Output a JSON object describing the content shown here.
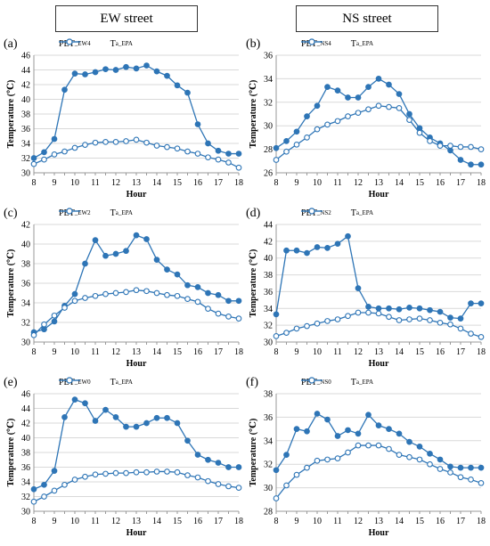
{
  "headers": {
    "left": "EW street",
    "right": "NS street"
  },
  "colors": {
    "series": "#2E75B6",
    "grid": "#d9d9d9",
    "axis": "#999999"
  },
  "chart_data": [
    {
      "type": "line",
      "label": "(a)",
      "xlabel": "Hour",
      "ylabel": "Temperature (℃)",
      "xlim": [
        8,
        18
      ],
      "ylim": [
        30,
        46
      ],
      "yticks": [
        30,
        32,
        34,
        36,
        38,
        40,
        42,
        44,
        46
      ],
      "xticks": [
        8,
        9,
        10,
        11,
        12,
        13,
        14,
        15,
        16,
        17,
        18
      ],
      "x": [
        8,
        8.5,
        9,
        9.5,
        10,
        10.5,
        11,
        11.5,
        12,
        12.5,
        13,
        13.5,
        14,
        14.5,
        15,
        15.5,
        16,
        16.5,
        17,
        17.5,
        18
      ],
      "series": [
        {
          "name": "PET",
          "sub": "_EW4",
          "marker": "filled",
          "values": [
            32.0,
            32.8,
            34.6,
            41.3,
            43.5,
            43.4,
            43.7,
            44.1,
            44.0,
            44.4,
            44.2,
            44.6,
            43.8,
            43.2,
            41.9,
            40.9,
            36.6,
            34.0,
            33.0,
            32.6,
            32.6
          ]
        },
        {
          "name": "T",
          "sub": "a_EPA",
          "marker": "open",
          "values": [
            31.2,
            31.8,
            32.5,
            32.9,
            33.4,
            33.8,
            34.1,
            34.2,
            34.2,
            34.3,
            34.5,
            34.1,
            33.7,
            33.5,
            33.3,
            32.9,
            32.6,
            32.1,
            31.8,
            31.4,
            30.7
          ]
        }
      ]
    },
    {
      "type": "line",
      "label": "(b)",
      "xlabel": "Hour",
      "ylabel": "Temperature (℃)",
      "xlim": [
        8,
        18
      ],
      "ylim": [
        26,
        36
      ],
      "yticks": [
        26,
        28,
        30,
        32,
        34,
        36
      ],
      "xticks": [
        8,
        9,
        10,
        11,
        12,
        13,
        14,
        15,
        16,
        17,
        18
      ],
      "x": [
        8,
        8.5,
        9,
        9.5,
        10,
        10.5,
        11,
        11.5,
        12,
        12.5,
        13,
        13.5,
        14,
        14.5,
        15,
        15.5,
        16,
        16.5,
        17,
        17.5,
        18
      ],
      "series": [
        {
          "name": "PET",
          "sub": "_NS4",
          "marker": "filled",
          "values": [
            28.1,
            28.7,
            29.5,
            30.8,
            31.7,
            33.3,
            33.0,
            32.4,
            32.4,
            33.3,
            34.0,
            33.5,
            32.7,
            31.0,
            29.8,
            29.0,
            28.5,
            27.9,
            27.1,
            26.7,
            26.7
          ]
        },
        {
          "name": "T",
          "sub": "a_EPA",
          "marker": "open",
          "values": [
            27.1,
            27.8,
            28.4,
            29.0,
            29.7,
            30.1,
            30.4,
            30.8,
            31.1,
            31.4,
            31.7,
            31.6,
            31.5,
            30.5,
            29.4,
            28.7,
            28.3,
            28.3,
            28.2,
            28.2,
            28.0
          ]
        }
      ]
    },
    {
      "type": "line",
      "label": "(c)",
      "xlabel": "Hour",
      "ylabel": "Temperature (℃)",
      "xlim": [
        8,
        18
      ],
      "ylim": [
        30,
        42
      ],
      "yticks": [
        30,
        32,
        34,
        36,
        38,
        40,
        42
      ],
      "xticks": [
        8,
        9,
        10,
        11,
        12,
        13,
        14,
        15,
        16,
        17,
        18
      ],
      "x": [
        8,
        8.5,
        9,
        9.5,
        10,
        10.5,
        11,
        11.5,
        12,
        12.5,
        13,
        13.5,
        14,
        14.5,
        15,
        15.5,
        16,
        16.5,
        17,
        17.5,
        18
      ],
      "series": [
        {
          "name": "PET",
          "sub": "_EW2",
          "marker": "filled",
          "values": [
            31.0,
            31.3,
            32.1,
            33.7,
            34.9,
            38.0,
            40.4,
            38.8,
            39.0,
            39.3,
            40.9,
            40.5,
            38.4,
            37.4,
            36.9,
            35.8,
            35.6,
            35.0,
            34.8,
            34.2,
            34.2
          ]
        },
        {
          "name": "T",
          "sub": "a_EPA",
          "marker": "open",
          "values": [
            30.7,
            31.8,
            32.7,
            33.5,
            34.2,
            34.5,
            34.7,
            34.9,
            35.0,
            35.1,
            35.3,
            35.2,
            35.0,
            34.8,
            34.7,
            34.4,
            34.1,
            33.4,
            32.9,
            32.6,
            32.4
          ]
        }
      ]
    },
    {
      "type": "line",
      "label": "(d)",
      "xlabel": "Hour",
      "ylabel": "Temperature (℃)",
      "xlim": [
        8,
        18
      ],
      "ylim": [
        30,
        44
      ],
      "yticks": [
        30,
        32,
        34,
        36,
        38,
        40,
        42,
        44
      ],
      "xticks": [
        8,
        9,
        10,
        11,
        12,
        13,
        14,
        15,
        16,
        17,
        18
      ],
      "x": [
        8,
        8.5,
        9,
        9.5,
        10,
        10.5,
        11,
        11.5,
        12,
        12.5,
        13,
        13.5,
        14,
        14.5,
        15,
        15.5,
        16,
        16.5,
        17,
        17.5,
        18
      ],
      "series": [
        {
          "name": "PET",
          "sub": "_NS2",
          "marker": "filled",
          "values": [
            33.3,
            40.9,
            40.9,
            40.6,
            41.3,
            41.2,
            41.7,
            42.6,
            36.4,
            34.2,
            34.0,
            34.0,
            33.9,
            34.1,
            34.0,
            33.8,
            33.6,
            32.9,
            32.8,
            34.6,
            34.6
          ]
        },
        {
          "name": "T",
          "sub": "a_EPA",
          "marker": "open",
          "values": [
            30.7,
            31.1,
            31.6,
            31.9,
            32.2,
            32.5,
            32.7,
            33.1,
            33.5,
            33.5,
            33.4,
            33.0,
            32.6,
            32.7,
            32.8,
            32.6,
            32.3,
            32.1,
            31.6,
            31.0,
            30.6
          ]
        }
      ]
    },
    {
      "type": "line",
      "label": "(e)",
      "xlabel": "Hour",
      "ylabel": "Temperature (℃)",
      "xlim": [
        8,
        18
      ],
      "ylim": [
        30,
        46
      ],
      "yticks": [
        30,
        32,
        34,
        36,
        38,
        40,
        42,
        44,
        46
      ],
      "xticks": [
        8,
        9,
        10,
        11,
        12,
        13,
        14,
        15,
        16,
        17,
        18
      ],
      "x": [
        8,
        8.5,
        9,
        9.5,
        10,
        10.5,
        11,
        11.5,
        12,
        12.5,
        13,
        13.5,
        14,
        14.5,
        15,
        15.5,
        16,
        16.5,
        17,
        17.5,
        18
      ],
      "series": [
        {
          "name": "PET",
          "sub": "_EW0",
          "marker": "filled",
          "values": [
            33.0,
            33.6,
            35.5,
            42.8,
            45.2,
            44.7,
            42.3,
            43.8,
            42.8,
            41.5,
            41.5,
            42.0,
            42.7,
            42.7,
            42.0,
            39.6,
            37.7,
            37.0,
            36.6,
            36.0,
            36.0
          ]
        },
        {
          "name": "T",
          "sub": "a_EPA",
          "marker": "open",
          "values": [
            31.3,
            32.0,
            32.8,
            33.6,
            34.3,
            34.7,
            35.0,
            35.1,
            35.2,
            35.2,
            35.3,
            35.3,
            35.4,
            35.4,
            35.3,
            34.9,
            34.6,
            34.1,
            33.7,
            33.4,
            33.2
          ]
        }
      ]
    },
    {
      "type": "line",
      "label": "(f)",
      "xlabel": "Hour",
      "ylabel": "Temperature (℃)",
      "xlim": [
        8,
        18
      ],
      "ylim": [
        28,
        38
      ],
      "yticks": [
        28,
        30,
        32,
        34,
        36,
        38
      ],
      "xticks": [
        8,
        9,
        10,
        11,
        12,
        13,
        14,
        15,
        16,
        17,
        18
      ],
      "x": [
        8,
        8.5,
        9,
        9.5,
        10,
        10.5,
        11,
        11.5,
        12,
        12.5,
        13,
        13.5,
        14,
        14.5,
        15,
        15.5,
        16,
        16.5,
        17,
        17.5,
        18
      ],
      "series": [
        {
          "name": "PET",
          "sub": "_NS0",
          "marker": "filled",
          "values": [
            31.5,
            32.8,
            35.0,
            34.8,
            36.3,
            35.8,
            34.4,
            34.9,
            34.6,
            36.2,
            35.3,
            35.0,
            34.6,
            33.9,
            33.5,
            32.9,
            32.4,
            31.8,
            31.7,
            31.7,
            31.7
          ]
        },
        {
          "name": "T",
          "sub": "a_EPA",
          "marker": "open",
          "values": [
            29.1,
            30.2,
            31.1,
            31.7,
            32.3,
            32.4,
            32.5,
            33.0,
            33.6,
            33.6,
            33.6,
            33.3,
            32.8,
            32.6,
            32.4,
            32.0,
            31.6,
            31.3,
            30.9,
            30.7,
            30.4
          ]
        }
      ]
    }
  ]
}
